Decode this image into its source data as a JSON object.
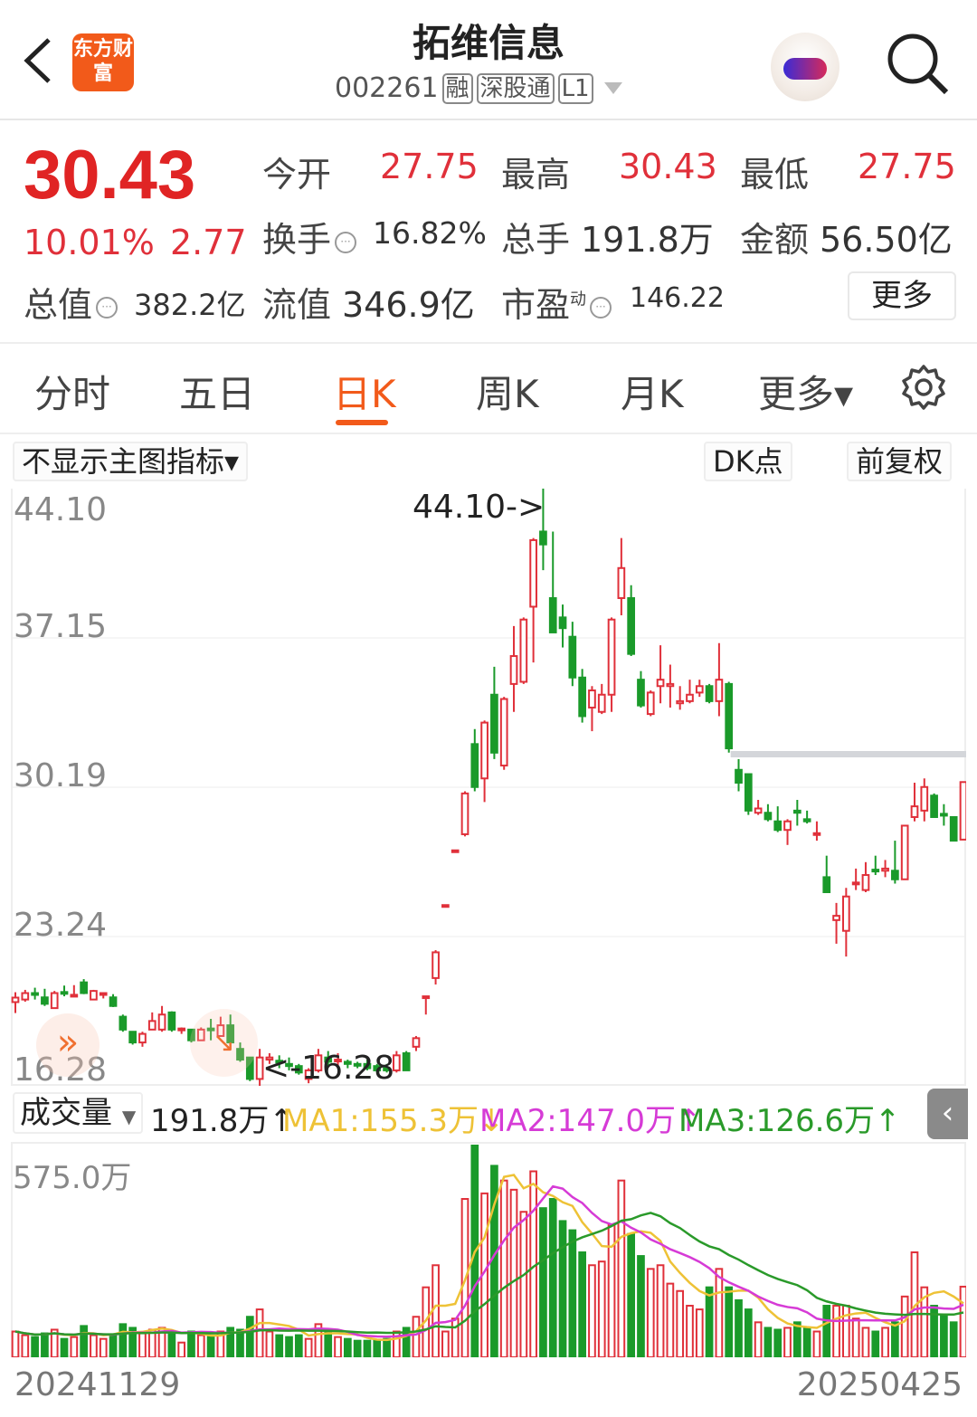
{
  "header": {
    "title": "拓维信息",
    "code": "002261",
    "tags": [
      "融",
      "深股通",
      "L1"
    ],
    "logo_text": "东方财富",
    "icons": [
      "back-icon",
      "app-logo",
      "assistant-mascot-icon",
      "search-icon"
    ]
  },
  "quote": {
    "price": "30.43",
    "change_pct": "10.01%",
    "change": "2.77",
    "open_label": "今开",
    "open": "27.75",
    "high_label": "最高",
    "high": "30.43",
    "low_label": "最低",
    "low": "27.75",
    "turnover_label": "换手",
    "turnover": "16.82%",
    "volume_label": "总手",
    "volume": "191.8万",
    "amount_label": "金额",
    "amount": "56.50亿",
    "mktcap_label": "总值",
    "mktcap": "382.2亿",
    "float_label": "流值",
    "float": "346.9亿",
    "pe_label": "市盈",
    "pe_sup": "动",
    "pe": "146.22",
    "more": "更多",
    "up_color": "#e0303a",
    "down_color": "#1a9a2a"
  },
  "tabs": [
    {
      "label": "分时"
    },
    {
      "label": "五日"
    },
    {
      "label": "日K",
      "active": true
    },
    {
      "label": "周K"
    },
    {
      "label": "月K"
    },
    {
      "label": "更多▾"
    }
  ],
  "toolbar": {
    "indicator": "不显示主图指标▾",
    "dk": "DK点",
    "adjust": "前复权"
  },
  "volume_legend": {
    "selector": "成交量",
    "current": "191.8万↑",
    "ma1": "MA1:155.3万↓",
    "ma2": "MA2:147.0万↑",
    "ma3": "MA3:126.6万↑",
    "ma_colors": [
      "#eec236",
      "#d63bd6",
      "#2a9a2a"
    ],
    "max_label": "575.0万"
  },
  "dates": {
    "start": "20241129",
    "end": "20250425"
  },
  "chart_data": {
    "type": "candlestick",
    "y_ticks": [
      "44.10",
      "37.15",
      "30.19",
      "23.24",
      "16.28"
    ],
    "ylim": [
      16.28,
      44.1
    ],
    "high_marker": "44.10->",
    "low_marker": "<-16.28",
    "volume_max": 575.0,
    "ohlc": [
      [
        20.18,
        20.64,
        19.67,
        20.39
      ],
      [
        20.3,
        20.75,
        20.2,
        20.6
      ],
      [
        20.6,
        20.85,
        20.3,
        20.55
      ],
      [
        20.4,
        20.8,
        20.0,
        20.1
      ],
      [
        19.9,
        20.7,
        19.9,
        20.6
      ],
      [
        20.65,
        20.95,
        20.45,
        20.6
      ],
      [
        20.5,
        20.97,
        20.45,
        20.52
      ],
      [
        21.1,
        21.25,
        20.55,
        20.6
      ],
      [
        20.3,
        20.75,
        20.3,
        20.7
      ],
      [
        20.55,
        20.6,
        20.35,
        20.6
      ],
      [
        20.4,
        20.55,
        19.95,
        20.0
      ],
      [
        19.5,
        19.6,
        18.8,
        18.9
      ],
      [
        18.8,
        18.8,
        18.2,
        18.3
      ],
      [
        18.3,
        18.8,
        18.1,
        18.7
      ],
      [
        18.9,
        19.7,
        18.9,
        19.3
      ],
      [
        18.9,
        20.0,
        18.8,
        19.6
      ],
      [
        19.7,
        19.75,
        18.8,
        18.9
      ],
      [
        18.9,
        19.0,
        18.7,
        18.95
      ],
      [
        18.9,
        18.9,
        18.3,
        18.4
      ],
      [
        18.4,
        19.0,
        18.4,
        18.9
      ],
      [
        18.95,
        19.4,
        18.4,
        18.9
      ],
      [
        18.6,
        19.5,
        18.6,
        19.1
      ],
      [
        19.1,
        19.6,
        18.3,
        18.3
      ],
      [
        18.0,
        18.3,
        17.4,
        17.5
      ],
      [
        17.6,
        17.6,
        16.5,
        16.6
      ],
      [
        16.6,
        18.0,
        16.28,
        17.6
      ],
      [
        17.5,
        17.8,
        17.3,
        17.6
      ],
      [
        17.45,
        17.7,
        17.1,
        17.4
      ],
      [
        17.3,
        17.6,
        17.0,
        17.2
      ],
      [
        17.2,
        17.3,
        16.8,
        16.9
      ],
      [
        16.6,
        17.1,
        16.4,
        17.0
      ],
      [
        17.0,
        18.0,
        16.9,
        17.7
      ],
      [
        17.6,
        17.9,
        17.2,
        17.4
      ],
      [
        17.45,
        17.8,
        17.2,
        17.5
      ],
      [
        17.4,
        17.5,
        17.1,
        17.3
      ],
      [
        17.3,
        17.4,
        17.1,
        17.25
      ],
      [
        17.3,
        17.5,
        17.0,
        17.1
      ],
      [
        17.2,
        17.3,
        16.9,
        17.0
      ],
      [
        17.1,
        17.3,
        16.9,
        17.0
      ],
      [
        17.0,
        17.9,
        16.9,
        17.7
      ],
      [
        17.8,
        17.9,
        17.0,
        17.0
      ],
      [
        18.1,
        18.6,
        17.9,
        18.5
      ],
      [
        20.4,
        20.45,
        19.6,
        20.45
      ],
      [
        21.3,
        22.6,
        21.0,
        22.5
      ],
      [
        24.7,
        24.7,
        24.7,
        24.7
      ],
      [
        27.25,
        27.25,
        27.25,
        27.25
      ],
      [
        28.0,
        30.0,
        27.9,
        29.9
      ],
      [
        32.2,
        32.9,
        30.0,
        30.2
      ],
      [
        30.6,
        33.3,
        29.5,
        33.2
      ],
      [
        34.5,
        35.8,
        31.5,
        31.8
      ],
      [
        31.2,
        34.4,
        31.0,
        34.3
      ],
      [
        35.0,
        37.7,
        33.7,
        36.3
      ],
      [
        35.1,
        38.1,
        35.0,
        38.0
      ],
      [
        38.6,
        41.8,
        36.0,
        41.7
      ],
      [
        42.1,
        44.1,
        40.3,
        41.5
      ],
      [
        39.0,
        42.1,
        37.4,
        37.4
      ],
      [
        38.1,
        38.7,
        36.7,
        37.6
      ],
      [
        37.2,
        37.9,
        34.9,
        35.3
      ],
      [
        35.3,
        35.7,
        33.2,
        33.5
      ],
      [
        33.9,
        34.9,
        32.8,
        34.7
      ],
      [
        33.7,
        35.0,
        33.6,
        34.5
      ],
      [
        34.5,
        38.1,
        33.7,
        38.0
      ],
      [
        39.0,
        41.8,
        38.2,
        40.4
      ],
      [
        39.0,
        39.6,
        36.3,
        36.4
      ],
      [
        35.2,
        35.6,
        33.9,
        34.0
      ],
      [
        33.6,
        34.7,
        33.5,
        34.6
      ],
      [
        34.9,
        36.8,
        34.1,
        35.2
      ],
      [
        34.9,
        35.9,
        33.9,
        35.0
      ],
      [
        34.1,
        34.9,
        33.8,
        34.2
      ],
      [
        34.2,
        35.2,
        34.1,
        34.5
      ],
      [
        34.6,
        35.2,
        34.4,
        34.9
      ],
      [
        34.9,
        35.0,
        34.1,
        34.2
      ],
      [
        34.2,
        36.9,
        33.5,
        35.2
      ],
      [
        35.0,
        35.1,
        31.8,
        32.0
      ],
      [
        31.0,
        31.5,
        30.0,
        30.4
      ],
      [
        30.8,
        30.8,
        28.9,
        29.1
      ],
      [
        29.0,
        29.6,
        28.9,
        29.2
      ],
      [
        29.0,
        29.4,
        28.6,
        28.7
      ],
      [
        28.6,
        29.3,
        28.1,
        28.2
      ],
      [
        28.2,
        28.7,
        27.5,
        28.6
      ],
      [
        29.1,
        29.6,
        28.4,
        29.0
      ],
      [
        28.7,
        29.1,
        28.5,
        28.6
      ],
      [
        28.0,
        28.6,
        27.7,
        28.05
      ],
      [
        26.0,
        27.0,
        25.3,
        25.3
      ],
      [
        24.0,
        24.8,
        22.9,
        24.2
      ],
      [
        23.5,
        25.5,
        22.3,
        25.1
      ],
      [
        25.7,
        26.4,
        25.4,
        25.75
      ],
      [
        25.4,
        26.7,
        25.3,
        26.1
      ],
      [
        26.35,
        27.0,
        26.1,
        26.3
      ],
      [
        26.3,
        26.8,
        26.0,
        26.4
      ],
      [
        26.3,
        27.7,
        25.7,
        25.9
      ],
      [
        25.9,
        28.4,
        25.9,
        28.4
      ],
      [
        28.8,
        30.4,
        28.6,
        29.3
      ],
      [
        29.1,
        30.6,
        28.6,
        30.2
      ],
      [
        29.8,
        29.9,
        28.8,
        28.8
      ],
      [
        28.95,
        29.4,
        28.4,
        28.9
      ],
      [
        28.8,
        28.8,
        27.7,
        27.7
      ],
      [
        27.75,
        30.43,
        27.75,
        30.43
      ]
    ],
    "volume": [
      70,
      60,
      55,
      65,
      75,
      50,
      55,
      85,
      60,
      50,
      60,
      90,
      80,
      65,
      75,
      80,
      70,
      40,
      70,
      60,
      55,
      70,
      80,
      75,
      110,
      130,
      70,
      60,
      55,
      60,
      50,
      90,
      70,
      55,
      50,
      45,
      45,
      45,
      50,
      70,
      80,
      110,
      190,
      250,
      70,
      105,
      430,
      575,
      445,
      520,
      480,
      455,
      395,
      505,
      405,
      430,
      370,
      345,
      285,
      250,
      260,
      360,
      480,
      335,
      275,
      240,
      250,
      200,
      180,
      140,
      130,
      190,
      240,
      190,
      155,
      130,
      95,
      80,
      75,
      80,
      95,
      80,
      70,
      140,
      140,
      140,
      105,
      80,
      70,
      80,
      95,
      165,
      285,
      190,
      140,
      115,
      95,
      191.8
    ]
  }
}
